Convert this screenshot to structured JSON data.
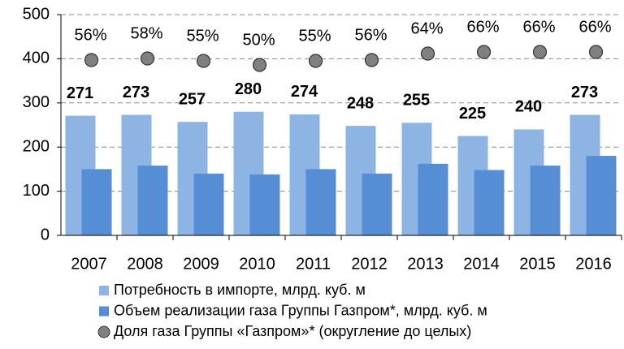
{
  "chart_data": {
    "type": "bar",
    "categories": [
      "2007",
      "2008",
      "2009",
      "2010",
      "2011",
      "2012",
      "2013",
      "2014",
      "2015",
      "2016"
    ],
    "series": [
      {
        "name": "Потребность в импорте, млрд. куб. м",
        "color": "#8db4e2",
        "values": [
          271,
          273,
          257,
          280,
          274,
          248,
          255,
          225,
          240,
          273
        ]
      },
      {
        "name": "Объем реализации газа Группы Газпром*, млрд. куб. м",
        "color": "#558ed5",
        "values": [
          150,
          158,
          140,
          138,
          150,
          140,
          162,
          148,
          158,
          180
        ]
      },
      {
        "name": "Доля газа Группы «Газпром»* (округление до целых)",
        "color": "#808080",
        "type": "scatter",
        "axis": "y2",
        "values": [
          56,
          58,
          55,
          50,
          55,
          56,
          64,
          66,
          66,
          66
        ],
        "value_labels": [
          "56%",
          "58%",
          "55%",
          "50%",
          "55%",
          "56%",
          "64%",
          "66%",
          "66%",
          "66%"
        ]
      }
    ],
    "ylim": [
      0,
      500
    ],
    "yticks": [
      0,
      100,
      200,
      300,
      400,
      500
    ],
    "y2lim": [
      -160,
      112
    ],
    "grid": true
  }
}
